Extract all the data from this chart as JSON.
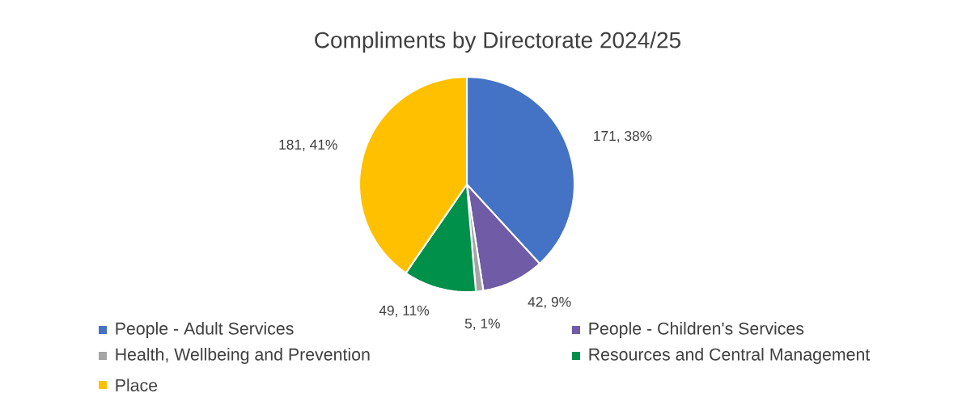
{
  "chart_data": {
    "type": "pie",
    "title": "Compliments by Directorate 2024/25",
    "categories": [
      "People - Adult Services",
      "People - Children's Services",
      "Health, Wellbeing and Prevention",
      "Resources and Central Management",
      "Place"
    ],
    "values": [
      171,
      42,
      5,
      49,
      181
    ],
    "colors": [
      "#4472c4",
      "#6f5ba6",
      "#a5a5a5",
      "#00904a",
      "#ffc000"
    ],
    "value_labels": [
      "171, 38%",
      "42, 9%",
      "5, 1%",
      "49, 11%",
      "181, 41%"
    ],
    "legend": "bottom"
  }
}
